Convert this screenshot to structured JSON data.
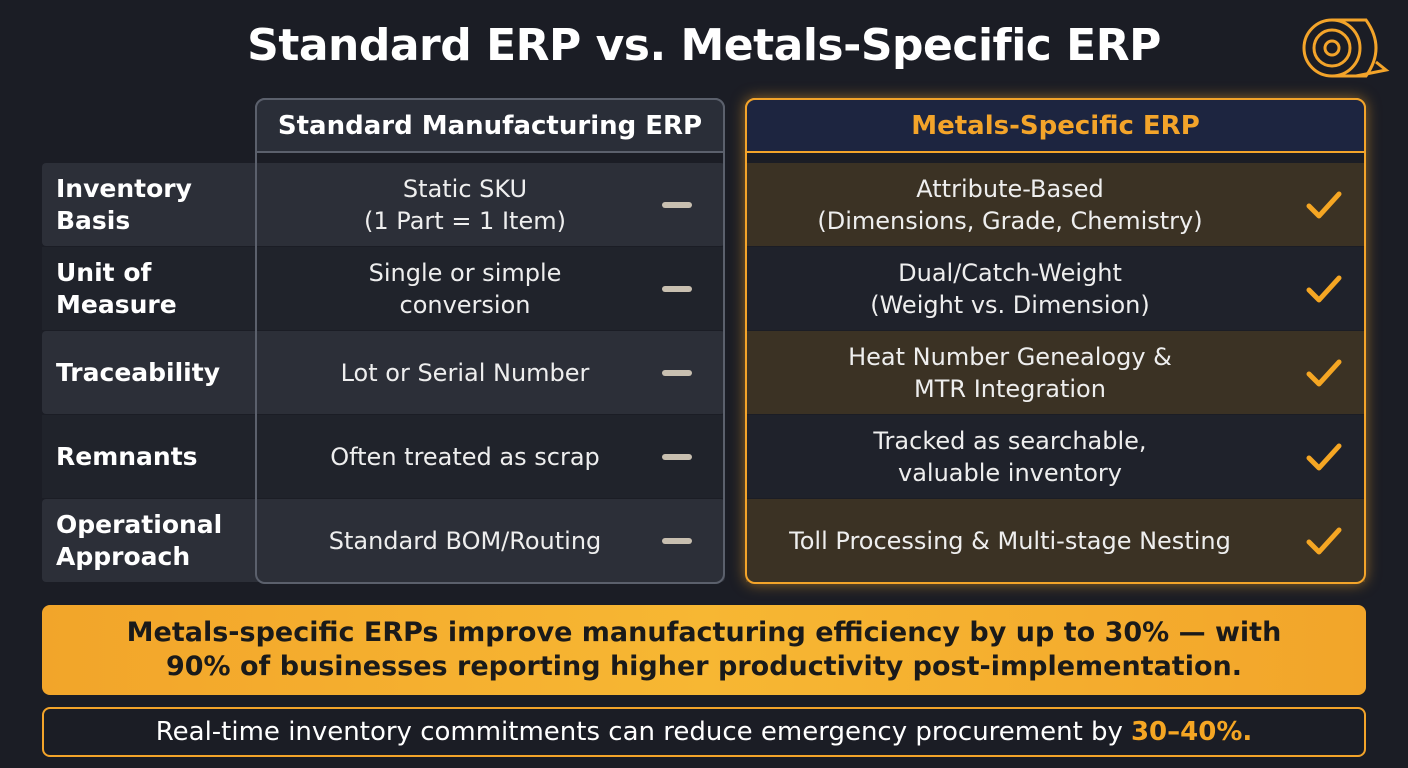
{
  "title": "Standard ERP vs. Metals-Specific ERP",
  "columns": {
    "standard": "Standard Manufacturing ERP",
    "metals": "Metals-Specific ERP"
  },
  "rows": [
    {
      "label": [
        "Inventory",
        "Basis"
      ],
      "standard": [
        "Static SKU",
        "(1 Part = 1 Item)"
      ],
      "metals": [
        "Attribute-Based",
        "(Dimensions, Grade, Chemistry)"
      ]
    },
    {
      "label": [
        "Unit of",
        "Measure"
      ],
      "standard": [
        "Single or simple",
        "conversion"
      ],
      "metals": [
        "Dual/Catch-Weight",
        "(Weight vs. Dimension)"
      ]
    },
    {
      "label": [
        "Traceability"
      ],
      "standard": [
        "Lot or Serial Number"
      ],
      "metals": [
        "Heat Number Genealogy &",
        "MTR Integration"
      ]
    },
    {
      "label": [
        "Remnants"
      ],
      "standard": [
        "Often treated as scrap"
      ],
      "metals": [
        "Tracked as searchable,",
        "valuable inventory"
      ]
    },
    {
      "label": [
        "Operational",
        "Approach"
      ],
      "standard": [
        "Standard BOM/Routing"
      ],
      "metals": [
        "Toll Processing & Multi-stage Nesting"
      ]
    }
  ],
  "callout": [
    "Metals-specific ERPs improve manufacturing efficiency by up to 30% — with",
    "90% of businesses reporting higher productivity post-implementation."
  ],
  "footer": {
    "text": "Real-time inventory commitments can reduce emergency procurement by",
    "highlight": "30–40%."
  }
}
